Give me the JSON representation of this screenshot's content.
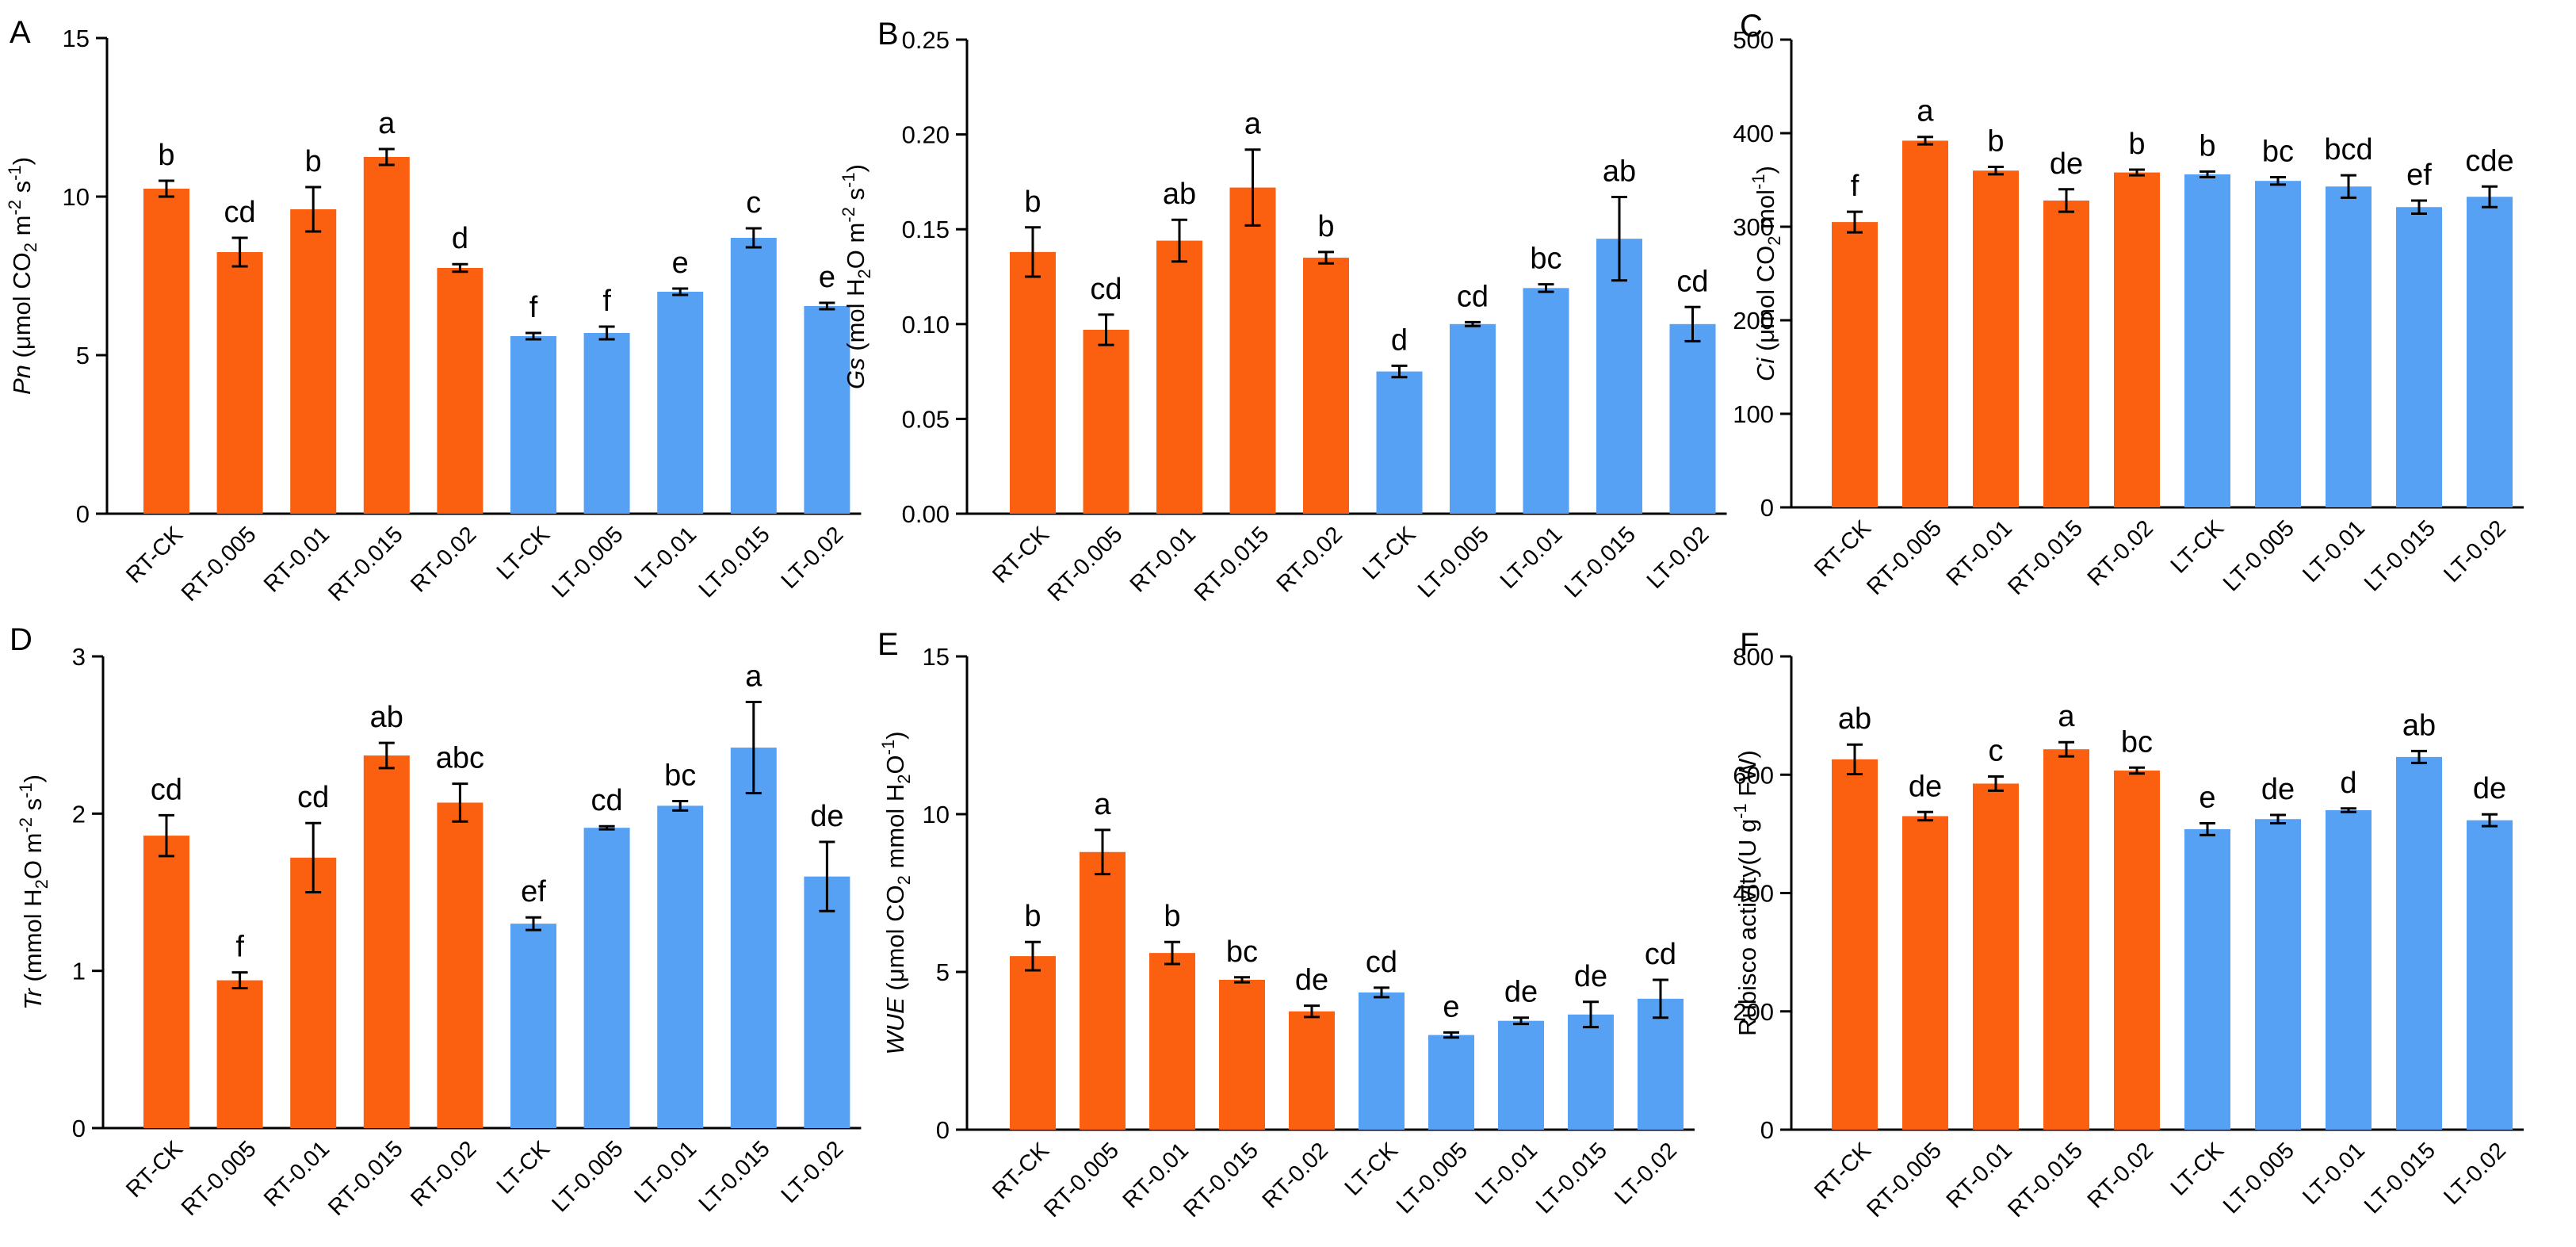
{
  "colors": {
    "rt": "#fa6010",
    "lt": "#56a1f4"
  },
  "chart_data": [
    {
      "type": "bar",
      "panel": "A",
      "ylabel_parts": [
        {
          "t": "Pn",
          "s": "i"
        },
        {
          "t": " (μmol CO",
          "s": "n"
        },
        {
          "t": "2",
          "s": "sub"
        },
        {
          "t": " m",
          "s": "n"
        },
        {
          "t": "-2",
          "s": "sup"
        },
        {
          "t": " s",
          "s": "n"
        },
        {
          "t": "-1",
          "s": "sup"
        },
        {
          "t": ")",
          "s": "n"
        }
      ],
      "ylim": [
        0,
        15
      ],
      "yticks": [
        0,
        5,
        10,
        15
      ],
      "ytick_labels": [
        "0",
        "5",
        "10",
        "15"
      ],
      "categories": [
        "RT-CK",
        "RT-0.005",
        "RT-0.01",
        "RT-0.015",
        "RT-0.02",
        "LT-CK",
        "LT-0.005",
        "LT-0.01",
        "LT-0.015",
        "LT-0.02"
      ],
      "groups": [
        "rt",
        "rt",
        "rt",
        "rt",
        "rt",
        "lt",
        "lt",
        "lt",
        "lt",
        "lt"
      ],
      "values": [
        10.25,
        8.25,
        9.6,
        11.25,
        7.75,
        5.6,
        5.7,
        7.0,
        8.7,
        6.55
      ],
      "errors": [
        0.25,
        0.45,
        0.7,
        0.25,
        0.12,
        0.1,
        0.2,
        0.1,
        0.3,
        0.1
      ],
      "significance": [
        "b",
        "cd",
        "b",
        "a",
        "d",
        "f",
        "f",
        "e",
        "c",
        "e"
      ]
    },
    {
      "type": "bar",
      "panel": "B",
      "ylabel_parts": [
        {
          "t": "Gs",
          "s": "i"
        },
        {
          "t": " (mol H",
          "s": "n"
        },
        {
          "t": "2",
          "s": "sub"
        },
        {
          "t": "O m",
          "s": "n"
        },
        {
          "t": "-2",
          "s": "sup"
        },
        {
          "t": " s",
          "s": "n"
        },
        {
          "t": "-1",
          "s": "sup"
        },
        {
          "t": ")",
          "s": "n"
        }
      ],
      "ylim": [
        0,
        0.25
      ],
      "yticks": [
        0,
        0.05,
        0.1,
        0.15,
        0.2,
        0.25
      ],
      "ytick_labels": [
        "0.00",
        "0.05",
        "0.10",
        "0.15",
        "0.20",
        "0.25"
      ],
      "categories": [
        "RT-CK",
        "RT-0.005",
        "RT-0.01",
        "RT-0.015",
        "RT-0.02",
        "LT-CK",
        "LT-0.005",
        "LT-0.01",
        "LT-0.015",
        "LT-0.02"
      ],
      "groups": [
        "rt",
        "rt",
        "rt",
        "rt",
        "rt",
        "lt",
        "lt",
        "lt",
        "lt",
        "lt"
      ],
      "values": [
        0.138,
        0.097,
        0.144,
        0.172,
        0.135,
        0.075,
        0.1,
        0.119,
        0.145,
        0.1
      ],
      "errors": [
        0.013,
        0.008,
        0.011,
        0.02,
        0.003,
        0.003,
        0.001,
        0.002,
        0.022,
        0.009
      ],
      "significance": [
        "b",
        "cd",
        "ab",
        "a",
        "b",
        "d",
        "cd",
        "bc",
        "ab",
        "cd"
      ]
    },
    {
      "type": "bar",
      "panel": "C",
      "ylabel_parts": [
        {
          "t": "Ci",
          "s": "i"
        },
        {
          "t": " (μmol CO",
          "s": "n"
        },
        {
          "t": "2",
          "s": "sub"
        },
        {
          "t": " mol",
          "s": "n"
        },
        {
          "t": "-1",
          "s": "sup"
        },
        {
          "t": ")",
          "s": "n"
        }
      ],
      "ylim": [
        0,
        500
      ],
      "yticks": [
        0,
        100,
        200,
        300,
        400,
        500
      ],
      "ytick_labels": [
        "0",
        "100",
        "200",
        "300",
        "400",
        "500"
      ],
      "categories": [
        "RT-CK",
        "RT-0.005",
        "RT-0.01",
        "RT-0.015",
        "RT-0.02",
        "LT-CK",
        "LT-0.005",
        "LT-0.01",
        "LT-0.015",
        "LT-0.02"
      ],
      "groups": [
        "rt",
        "rt",
        "rt",
        "rt",
        "rt",
        "lt",
        "lt",
        "lt",
        "lt",
        "lt"
      ],
      "values": [
        305,
        392,
        360,
        328,
        358,
        356,
        349,
        343,
        321,
        332
      ],
      "errors": [
        11,
        4,
        4,
        12,
        3,
        3,
        4,
        12,
        7,
        11
      ],
      "significance": [
        "f",
        "a",
        "b",
        "de",
        "b",
        "b",
        "bc",
        "bcd",
        "ef",
        "cde"
      ]
    },
    {
      "type": "bar",
      "panel": "D",
      "ylabel_parts": [
        {
          "t": "Tr",
          "s": "i"
        },
        {
          "t": " (mmol H",
          "s": "n"
        },
        {
          "t": "2",
          "s": "sub"
        },
        {
          "t": "O m",
          "s": "n"
        },
        {
          "t": "-2",
          "s": "sup"
        },
        {
          "t": " s",
          "s": "n"
        },
        {
          "t": "-1",
          "s": "sup"
        },
        {
          "t": ")",
          "s": "n"
        }
      ],
      "ylim": [
        0,
        3
      ],
      "yticks": [
        0,
        1,
        2,
        3
      ],
      "ytick_labels": [
        "0",
        "1",
        "2",
        "3"
      ],
      "categories": [
        "RT-CK",
        "RT-0.005",
        "RT-0.01",
        "RT-0.015",
        "RT-0.02",
        "LT-CK",
        "LT-0.005",
        "LT-0.01",
        "LT-0.015",
        "LT-0.02"
      ],
      "groups": [
        "rt",
        "rt",
        "rt",
        "rt",
        "rt",
        "lt",
        "lt",
        "lt",
        "lt",
        "lt"
      ],
      "values": [
        1.86,
        0.94,
        1.72,
        2.37,
        2.07,
        1.3,
        1.91,
        2.05,
        2.42,
        1.6
      ],
      "errors": [
        0.13,
        0.05,
        0.22,
        0.08,
        0.12,
        0.04,
        0.01,
        0.03,
        0.29,
        0.22
      ],
      "significance": [
        "cd",
        "f",
        "cd",
        "ab",
        "abc",
        "ef",
        "cd",
        "bc",
        "a",
        "de"
      ]
    },
    {
      "type": "bar",
      "panel": "E",
      "ylabel_parts": [
        {
          "t": "WUE",
          "s": "i"
        },
        {
          "t": " (μmol CO",
          "s": "n"
        },
        {
          "t": "2",
          "s": "sub"
        },
        {
          "t": " mmol H",
          "s": "n"
        },
        {
          "t": "2",
          "s": "sub"
        },
        {
          "t": "O",
          "s": "n"
        },
        {
          "t": "-1",
          "s": "sup"
        },
        {
          "t": ")",
          "s": "n"
        }
      ],
      "ylim": [
        0,
        15
      ],
      "yticks": [
        0,
        5,
        10,
        15
      ],
      "ytick_labels": [
        "0",
        "5",
        "10",
        "15"
      ],
      "categories": [
        "RT-CK",
        "RT-0.005",
        "RT-0.01",
        "RT-0.015",
        "RT-0.02",
        "LT-CK",
        "LT-0.005",
        "LT-0.01",
        "LT-0.015",
        "LT-0.02"
      ],
      "groups": [
        "rt",
        "rt",
        "rt",
        "rt",
        "rt",
        "lt",
        "lt",
        "lt",
        "lt",
        "lt"
      ],
      "values": [
        5.5,
        8.8,
        5.6,
        4.75,
        3.75,
        4.35,
        3.0,
        3.45,
        3.65,
        4.15
      ],
      "errors": [
        0.45,
        0.7,
        0.35,
        0.08,
        0.18,
        0.15,
        0.08,
        0.1,
        0.4,
        0.6
      ],
      "significance": [
        "b",
        "a",
        "b",
        "bc",
        "de",
        "cd",
        "e",
        "de",
        "de",
        "cd"
      ]
    },
    {
      "type": "bar",
      "panel": "F",
      "ylabel_parts": [
        {
          "t": "Rubisco activity(U g",
          "s": "n"
        },
        {
          "t": "-1",
          "s": "sup"
        },
        {
          "t": " FW)",
          "s": "n"
        }
      ],
      "ylim": [
        0,
        800
      ],
      "yticks": [
        0,
        200,
        400,
        600,
        800
      ],
      "ytick_labels": [
        "0",
        "200",
        "400",
        "600",
        "800"
      ],
      "categories": [
        "RT-CK",
        "RT-0.005",
        "RT-0.01",
        "RT-0.015",
        "RT-0.02",
        "LT-CK",
        "LT-0.005",
        "LT-0.01",
        "LT-0.015",
        "LT-0.02"
      ],
      "groups": [
        "rt",
        "rt",
        "rt",
        "rt",
        "rt",
        "lt",
        "lt",
        "lt",
        "lt",
        "lt"
      ],
      "values": [
        626,
        530,
        585,
        643,
        607,
        508,
        525,
        540,
        630,
        523
      ],
      "errors": [
        25,
        7,
        12,
        12,
        5,
        10,
        7,
        3,
        10,
        10
      ],
      "significance": [
        "ab",
        "de",
        "c",
        "a",
        "bc",
        "e",
        "de",
        "d",
        "ab",
        "de"
      ]
    }
  ]
}
